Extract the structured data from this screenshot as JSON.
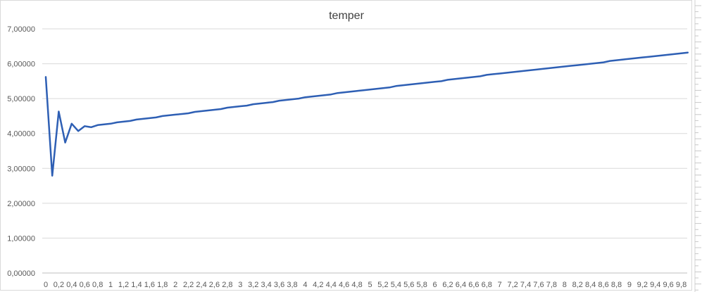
{
  "chart_data": {
    "type": "line",
    "title": "temper",
    "xlabel": "",
    "ylabel": "",
    "ylim": [
      0,
      7
    ],
    "y_ticks": [
      "0,00000",
      "1,00000",
      "2,00000",
      "3,00000",
      "4,00000",
      "5,00000",
      "6,00000",
      "7,00000"
    ],
    "x_ticks": [
      "0",
      "0,2",
      "0,4",
      "0,6",
      "0,8",
      "1",
      "1,2",
      "1,4",
      "1,6",
      "1,8",
      "2",
      "2,2",
      "2,4",
      "2,6",
      "2,8",
      "3",
      "3,2",
      "3,4",
      "3,6",
      "3,8",
      "4",
      "4,2",
      "4,4",
      "4,6",
      "4,8",
      "5",
      "5,2",
      "5,4",
      "5,6",
      "5,8",
      "6",
      "6,2",
      "6,4",
      "6,6",
      "6,8",
      "7",
      "7,2",
      "7,4",
      "7,6",
      "7,8",
      "8",
      "8,2",
      "8,4",
      "8,6",
      "8,8",
      "9",
      "9,2",
      "9,4",
      "9,6",
      "9,8"
    ],
    "grid": true,
    "legend": "none",
    "series": [
      {
        "color": "#2e5fb4",
        "x": [
          0,
          0.1,
          0.2,
          0.3,
          0.4,
          0.5,
          0.6,
          0.7,
          0.8,
          0.9,
          1.0,
          1.1,
          1.2,
          1.3,
          1.4,
          1.5,
          1.6,
          1.7,
          1.8,
          1.9,
          2.0,
          2.1,
          2.2,
          2.3,
          2.4,
          2.5,
          2.6,
          2.7,
          2.8,
          2.9,
          3.0,
          3.1,
          3.2,
          3.3,
          3.4,
          3.5,
          3.6,
          3.7,
          3.8,
          3.9,
          4.0,
          4.1,
          4.2,
          4.3,
          4.4,
          4.5,
          4.6,
          4.7,
          4.8,
          4.9,
          5.0,
          5.1,
          5.2,
          5.3,
          5.4,
          5.5,
          5.6,
          5.7,
          5.8,
          5.9,
          6.0,
          6.1,
          6.2,
          6.3,
          6.4,
          6.5,
          6.6,
          6.7,
          6.8,
          6.9,
          7.0,
          7.1,
          7.2,
          7.3,
          7.4,
          7.5,
          7.6,
          7.7,
          7.8,
          7.9,
          8.0,
          8.1,
          8.2,
          8.3,
          8.4,
          8.5,
          8.6,
          8.7,
          8.8,
          8.9,
          9.0,
          9.1,
          9.2,
          9.3,
          9.4,
          9.5,
          9.6,
          9.7,
          9.8,
          9.9
        ],
        "y": [
          5.62,
          2.79,
          4.63,
          3.74,
          4.28,
          4.07,
          4.21,
          4.18,
          4.24,
          4.26,
          4.28,
          4.32,
          4.34,
          4.36,
          4.4,
          4.42,
          4.44,
          4.46,
          4.5,
          4.52,
          4.54,
          4.56,
          4.58,
          4.62,
          4.64,
          4.66,
          4.68,
          4.7,
          4.74,
          4.76,
          4.78,
          4.8,
          4.84,
          4.86,
          4.88,
          4.9,
          4.94,
          4.96,
          4.98,
          5.0,
          5.04,
          5.06,
          5.08,
          5.1,
          5.12,
          5.16,
          5.18,
          5.2,
          5.22,
          5.24,
          5.26,
          5.28,
          5.3,
          5.32,
          5.36,
          5.38,
          5.4,
          5.42,
          5.44,
          5.46,
          5.48,
          5.5,
          5.54,
          5.56,
          5.58,
          5.6,
          5.62,
          5.64,
          5.68,
          5.7,
          5.72,
          5.74,
          5.76,
          5.78,
          5.8,
          5.82,
          5.84,
          5.86,
          5.88,
          5.9,
          5.92,
          5.94,
          5.96,
          5.98,
          6.0,
          6.02,
          6.04,
          6.08,
          6.1,
          6.12,
          6.14,
          6.16,
          6.18,
          6.2,
          6.22,
          6.24,
          6.26,
          6.28,
          6.3,
          6.32
        ]
      }
    ]
  }
}
